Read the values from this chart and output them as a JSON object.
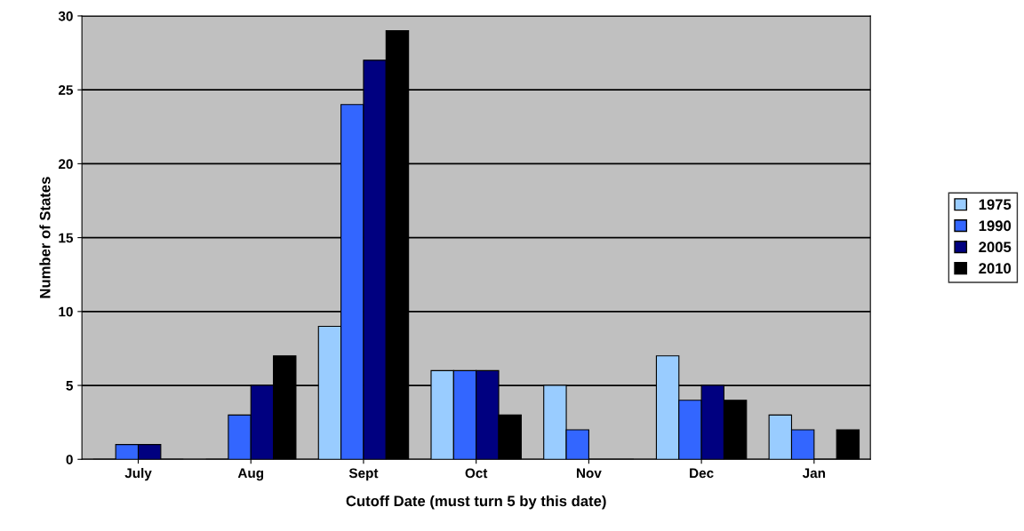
{
  "chart_data": {
    "type": "bar",
    "xlabel": "Cutoff Date (must turn 5 by this date)",
    "ylabel": "Number of States",
    "categories": [
      "July",
      "Aug",
      "Sept",
      "Oct",
      "Nov",
      "Dec",
      "Jan"
    ],
    "series": [
      {
        "name": "1975",
        "color": "#99ccff",
        "values": [
          0,
          0,
          9,
          6,
          5,
          7,
          3
        ]
      },
      {
        "name": "1990",
        "color": "#3366ff",
        "values": [
          1,
          3,
          24,
          6,
          2,
          4,
          2
        ]
      },
      {
        "name": "2005",
        "color": "#000080",
        "values": [
          1,
          5,
          27,
          6,
          0,
          5,
          0
        ]
      },
      {
        "name": "2010",
        "color": "#000000",
        "values": [
          0,
          7,
          29,
          3,
          0,
          4,
          2
        ]
      }
    ],
    "ylim": [
      0,
      30
    ],
    "yticks": [
      0,
      5,
      10,
      15,
      20,
      25,
      30
    ],
    "grid": "y",
    "legend": "right"
  }
}
